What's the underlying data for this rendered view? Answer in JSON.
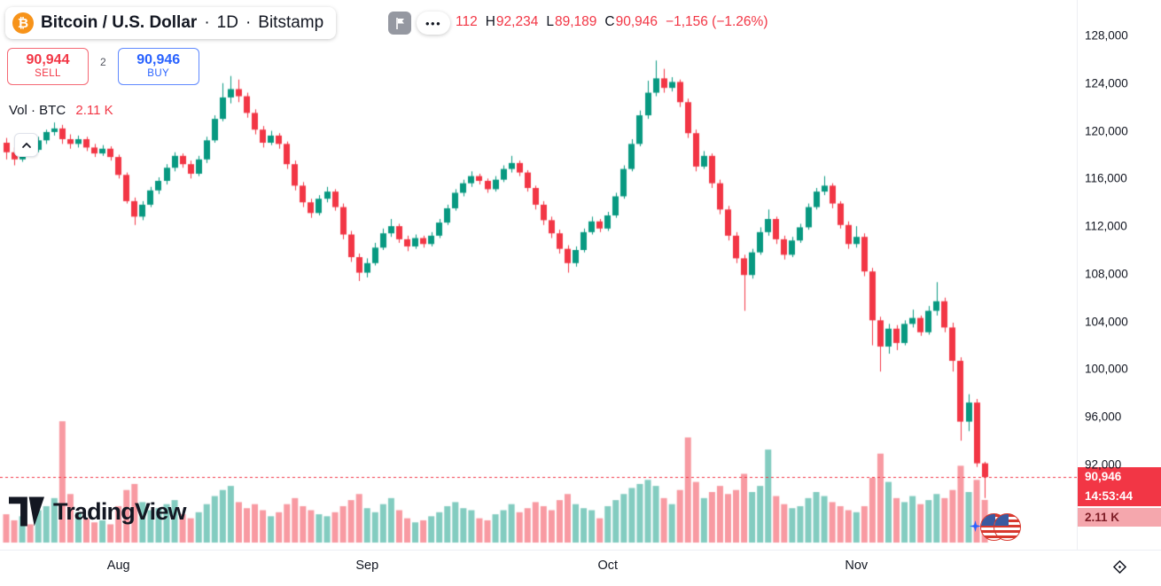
{
  "header": {
    "btc_glyph": "₿",
    "symbol_title": "Bitcoin / U.S. Dollar",
    "separator": "·",
    "interval": "1D",
    "exchange": "Bitstamp",
    "more_options": "•••",
    "ohlc": {
      "open_partial": "112",
      "high_key": "H",
      "high_value": "92,234",
      "low_key": "L",
      "low_value": "89,189",
      "close_key": "C",
      "close_value": "90,946",
      "change": "−1,156 (−1.26%)"
    }
  },
  "trade_panel": {
    "sell_price": "90,944",
    "sell_label": "SELL",
    "spread": "2",
    "buy_price": "90,946",
    "buy_label": "BUY"
  },
  "volume_legend": {
    "label": "Vol · BTC",
    "value": "2.11 K"
  },
  "price_scale": {
    "last_price_label": "90,946",
    "countdown": "14:53:44",
    "volume_label": "2.11 K"
  },
  "logo": {
    "text": "TradingView"
  },
  "colors": {
    "up": "#089981",
    "down": "#F23645",
    "volume_up": "rgba(8,153,129,0.5)",
    "volume_down": "rgba(242,54,69,0.5)",
    "buy_blue": "#2962FF",
    "bitcoin_orange": "#F7931A",
    "axis_label_bg": "#F23645",
    "axis_vol_bg": "#F5A7AD"
  },
  "chart_data": {
    "type": "candlestick",
    "title": "Bitcoin / U.S. Dollar · 1D · Bitstamp",
    "volume_unit": "K BTC",
    "y_axis": {
      "ticks": [
        128000,
        124000,
        120000,
        116000,
        112000,
        108000,
        104000,
        100000,
        96000,
        92000
      ],
      "labels": [
        "128,000",
        "124,000",
        "120,000",
        "116,000",
        "112,000",
        "108,000",
        "104,000",
        "100,000",
        "96,000",
        "92,000"
      ]
    },
    "x_axis": {
      "month_labels": [
        "Aug",
        "Sep",
        "Oct",
        "Nov"
      ],
      "month_indices": [
        14,
        45,
        75,
        106
      ]
    },
    "last": {
      "price": 90946,
      "high": 92234,
      "low": 89189,
      "close": 90946,
      "change": -1156,
      "change_pct": -1.26,
      "volume_k": 2.11
    },
    "candles_format": [
      "open",
      "high",
      "low",
      "close",
      "volume_k"
    ],
    "candles": [
      [
        119000,
        119400,
        117600,
        118200,
        1.4
      ],
      [
        118200,
        118600,
        117100,
        117600,
        1.1
      ],
      [
        117600,
        119100,
        117400,
        118800,
        1.3
      ],
      [
        118800,
        119200,
        118000,
        118400,
        0.9
      ],
      [
        118400,
        119500,
        118200,
        119200,
        1.6
      ],
      [
        119200,
        120100,
        118900,
        119900,
        1.8
      ],
      [
        119900,
        120700,
        119600,
        120200,
        2.2
      ],
      [
        120200,
        120500,
        118900,
        119300,
        6.0
      ],
      [
        119300,
        119700,
        118500,
        118900,
        2.4
      ],
      [
        118900,
        119600,
        118600,
        119300,
        1.5
      ],
      [
        119300,
        119500,
        118300,
        118600,
        1.2
      ],
      [
        118600,
        118900,
        117800,
        118100,
        1.0
      ],
      [
        118100,
        118800,
        117900,
        118500,
        1.1
      ],
      [
        118500,
        118700,
        117500,
        117800,
        0.9
      ],
      [
        117800,
        118000,
        116000,
        116300,
        1.8
      ],
      [
        116300,
        116500,
        113900,
        114100,
        2.6
      ],
      [
        114100,
        114400,
        112100,
        112800,
        2.9
      ],
      [
        112800,
        114100,
        112500,
        113800,
        2.0
      ],
      [
        113800,
        115300,
        113600,
        115000,
        1.6
      ],
      [
        115000,
        116100,
        114700,
        115800,
        1.7
      ],
      [
        115800,
        117200,
        115500,
        116900,
        1.9
      ],
      [
        116900,
        118200,
        116600,
        117900,
        2.1
      ],
      [
        117900,
        118100,
        116900,
        117200,
        1.4
      ],
      [
        117200,
        117500,
        116000,
        116400,
        1.2
      ],
      [
        116400,
        117900,
        116200,
        117600,
        1.5
      ],
      [
        117600,
        119500,
        117300,
        119200,
        1.9
      ],
      [
        119200,
        121300,
        119000,
        121000,
        2.3
      ],
      [
        121000,
        124000,
        120800,
        122800,
        2.6
      ],
      [
        122800,
        124600,
        122300,
        123500,
        2.8
      ],
      [
        123500,
        124300,
        122400,
        122900,
        2.0
      ],
      [
        122900,
        123200,
        121100,
        121500,
        1.7
      ],
      [
        121500,
        121800,
        119700,
        120100,
        1.9
      ],
      [
        120100,
        120400,
        118600,
        119000,
        1.6
      ],
      [
        119000,
        120000,
        118800,
        119600,
        1.3
      ],
      [
        119600,
        119800,
        118500,
        118900,
        1.5
      ],
      [
        118900,
        119100,
        116800,
        117200,
        1.9
      ],
      [
        117200,
        117500,
        115000,
        115400,
        2.2
      ],
      [
        115400,
        115700,
        113600,
        114000,
        1.8
      ],
      [
        114000,
        114300,
        112700,
        113100,
        1.6
      ],
      [
        113100,
        114600,
        112900,
        114300,
        1.4
      ],
      [
        114300,
        115300,
        114000,
        114900,
        1.3
      ],
      [
        114900,
        115100,
        113300,
        113600,
        1.5
      ],
      [
        113600,
        113900,
        110900,
        111300,
        1.8
      ],
      [
        111300,
        111600,
        109000,
        109400,
        2.1
      ],
      [
        109400,
        109700,
        107400,
        108100,
        2.4
      ],
      [
        108100,
        109300,
        107700,
        108900,
        1.7
      ],
      [
        108900,
        110600,
        108700,
        110200,
        1.5
      ],
      [
        110200,
        111800,
        110000,
        111400,
        1.9
      ],
      [
        111400,
        112600,
        111100,
        112000,
        2.2
      ],
      [
        112000,
        112200,
        110600,
        110900,
        1.6
      ],
      [
        110900,
        111200,
        109900,
        110300,
        1.2
      ],
      [
        110300,
        111300,
        110100,
        111000,
        1.0
      ],
      [
        111000,
        111200,
        110200,
        110500,
        1.1
      ],
      [
        110500,
        111500,
        110300,
        111200,
        1.3
      ],
      [
        111200,
        112600,
        111000,
        112300,
        1.5
      ],
      [
        112300,
        113800,
        112100,
        113500,
        1.8
      ],
      [
        113500,
        115100,
        113300,
        114800,
        2.0
      ],
      [
        114800,
        115900,
        114500,
        115600,
        1.7
      ],
      [
        115600,
        116600,
        115300,
        116200,
        1.6
      ],
      [
        116200,
        116400,
        115500,
        115800,
        1.2
      ],
      [
        115800,
        116000,
        114800,
        115100,
        1.1
      ],
      [
        115100,
        116200,
        114900,
        115900,
        1.4
      ],
      [
        115900,
        117100,
        115700,
        116800,
        1.6
      ],
      [
        116800,
        117900,
        116500,
        117300,
        1.9
      ],
      [
        117300,
        117500,
        116200,
        116500,
        1.5
      ],
      [
        116500,
        116700,
        114900,
        115200,
        1.7
      ],
      [
        115200,
        115400,
        113400,
        113800,
        2.0
      ],
      [
        113800,
        114100,
        112100,
        112500,
        1.8
      ],
      [
        112500,
        112800,
        111000,
        111400,
        1.6
      ],
      [
        111400,
        111700,
        109700,
        110100,
        2.1
      ],
      [
        110100,
        110400,
        108100,
        108900,
        2.4
      ],
      [
        108900,
        110300,
        108600,
        110000,
        1.9
      ],
      [
        110000,
        111800,
        109800,
        111500,
        1.7
      ],
      [
        111500,
        112800,
        111300,
        112400,
        1.6
      ],
      [
        112400,
        112600,
        111500,
        111800,
        1.2
      ],
      [
        111800,
        113200,
        111600,
        112900,
        1.8
      ],
      [
        112900,
        114800,
        112700,
        114500,
        2.1
      ],
      [
        114500,
        117100,
        114300,
        116800,
        2.4
      ],
      [
        116800,
        119300,
        116600,
        118900,
        2.7
      ],
      [
        118900,
        121700,
        118700,
        121300,
        2.9
      ],
      [
        121300,
        124200,
        121000,
        123200,
        3.1
      ],
      [
        123200,
        125900,
        122900,
        124400,
        2.8
      ],
      [
        124400,
        125200,
        123200,
        123600,
        2.2
      ],
      [
        123600,
        124500,
        123300,
        124100,
        1.9
      ],
      [
        124100,
        124300,
        122000,
        122400,
        2.6
      ],
      [
        122400,
        122700,
        119400,
        119800,
        5.2
      ],
      [
        119800,
        120100,
        116600,
        117000,
        3.0
      ],
      [
        117000,
        118300,
        116800,
        117900,
        2.2
      ],
      [
        117900,
        118100,
        115200,
        115600,
        2.5
      ],
      [
        115600,
        115900,
        113000,
        113400,
        2.8
      ],
      [
        113400,
        113700,
        110800,
        111200,
        2.4
      ],
      [
        111200,
        111500,
        108900,
        109300,
        2.6
      ],
      [
        109300,
        109600,
        104900,
        107900,
        3.4
      ],
      [
        107900,
        110100,
        107600,
        109800,
        2.5
      ],
      [
        109800,
        111900,
        109600,
        111500,
        2.8
      ],
      [
        111500,
        113400,
        111200,
        112600,
        4.6
      ],
      [
        112600,
        112800,
        110500,
        110900,
        2.3
      ],
      [
        110900,
        111200,
        109200,
        109600,
        1.9
      ],
      [
        109600,
        111100,
        109400,
        110800,
        1.7
      ],
      [
        110800,
        112200,
        110600,
        111900,
        1.8
      ],
      [
        111900,
        113900,
        111700,
        113600,
        2.2
      ],
      [
        113600,
        115200,
        113400,
        114900,
        2.5
      ],
      [
        114900,
        116200,
        114600,
        115400,
        2.3
      ],
      [
        115400,
        115600,
        113500,
        113900,
        2.0
      ],
      [
        113900,
        114100,
        111800,
        112100,
        1.8
      ],
      [
        112100,
        112400,
        110100,
        110500,
        1.6
      ],
      [
        110500,
        112000,
        110200,
        111100,
        1.5
      ],
      [
        111100,
        111400,
        107800,
        108200,
        1.8
      ],
      [
        108200,
        108500,
        102000,
        104100,
        3.2
      ],
      [
        104100,
        104400,
        99800,
        101900,
        4.4
      ],
      [
        101900,
        103800,
        101300,
        103400,
        3.0
      ],
      [
        103400,
        103700,
        101600,
        102200,
        2.2
      ],
      [
        102200,
        104100,
        102000,
        103800,
        2.0
      ],
      [
        103800,
        105000,
        103500,
        104300,
        2.3
      ],
      [
        104300,
        104500,
        102800,
        103100,
        1.9
      ],
      [
        103100,
        105300,
        102900,
        104900,
        2.1
      ],
      [
        104900,
        107300,
        104500,
        105700,
        2.4
      ],
      [
        105700,
        106000,
        103100,
        103500,
        2.2
      ],
      [
        103500,
        103900,
        99800,
        100700,
        2.6
      ],
      [
        100700,
        101000,
        94000,
        95600,
        3.8
      ],
      [
        95600,
        97900,
        94800,
        97200,
        2.5
      ],
      [
        97200,
        97500,
        91800,
        92102,
        3.1
      ],
      [
        92102,
        92234,
        89189,
        90946,
        2.11
      ]
    ]
  }
}
